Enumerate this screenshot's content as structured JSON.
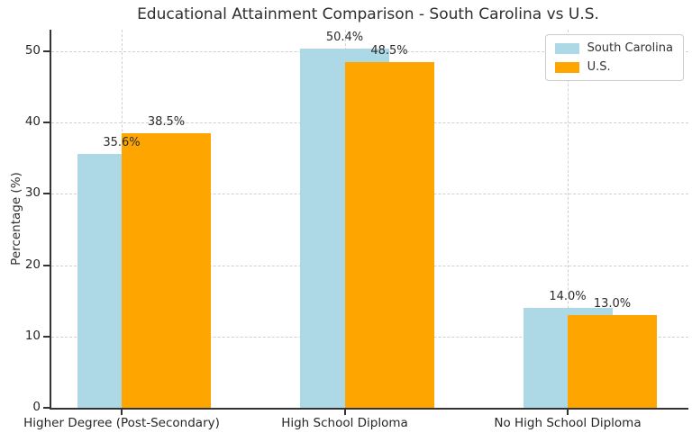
{
  "chart_data": {
    "type": "bar",
    "title": "Educational Attainment Comparison - South Carolina vs U.S.",
    "ylabel": "Percentage (%)",
    "xlabel": "",
    "categories": [
      "Higher Degree (Post-Secondary)",
      "High School Diploma",
      "No High School Diploma"
    ],
    "series": [
      {
        "name": "South Carolina",
        "color": "#add8e6",
        "values": [
          35.6,
          50.4,
          14.0
        ]
      },
      {
        "name": "U.S.",
        "color": "#ffa500",
        "values": [
          38.5,
          48.5,
          13.0
        ]
      }
    ],
    "value_labels": [
      [
        "35.6%",
        "50.4%",
        "14.0%"
      ],
      [
        "38.5%",
        "48.5%",
        "13.0%"
      ]
    ],
    "ylim": [
      0,
      53
    ],
    "yticks": [
      0,
      10,
      20,
      30,
      40,
      50
    ],
    "grid": "both axes, dashed light gray",
    "legend_position": "upper right",
    "bar_layout": "second series offset right by half bar width, drawn in front of first",
    "colors": {
      "grid": "#d0d0d0",
      "axis": "#333333",
      "text": "#262626",
      "background": "#ffffff"
    }
  }
}
